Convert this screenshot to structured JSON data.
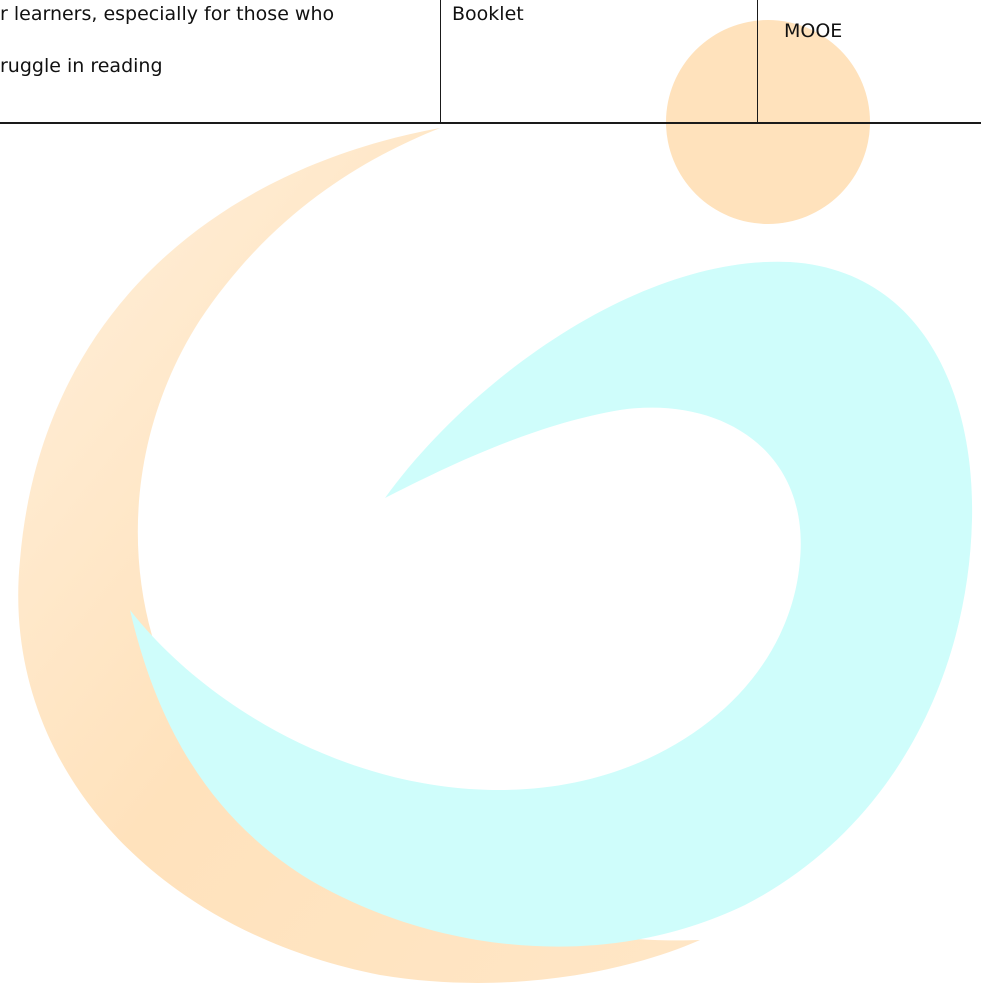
{
  "table": {
    "row": {
      "objective_line1": "r learners, especially for those who",
      "objective_line2": "ruggle in reading",
      "material": "Booklet",
      "fund_source": "MOOE"
    }
  },
  "watermark": {
    "orange_color": "#ffe0b0",
    "cyan_color": "#cffdfb",
    "dot_color": "#ffe2bc"
  }
}
